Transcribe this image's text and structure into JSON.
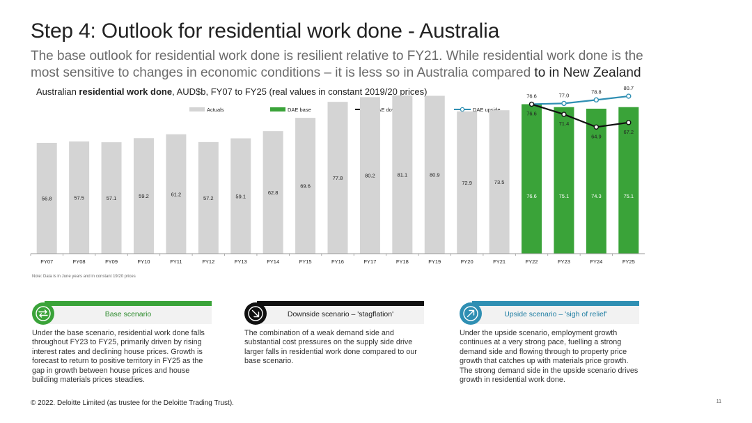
{
  "slide": {
    "title": "Step 4: Outlook for residential work done - Australia",
    "subtitle_line1": "The base outlook for residential work done is resilient relative to FY21. While residential work done is the",
    "subtitle_line2a": "most sensitive to changes in economic conditions – it is less so in Australia compared",
    "subtitle_line2b": "to in New Zealand",
    "chart_caption_a": "Australian ",
    "chart_caption_b": "residential work done",
    "chart_caption_c": ", AUD$b, FY07 to FY25 (real values in constant 2019/20 prices)",
    "note": "Note: Data is in June years and in constant 19/20 prices",
    "footer": "© 2022. Deloitte Limited (as trustee for the Deloitte Trading Trust).",
    "page_number": "11"
  },
  "cards": {
    "base": {
      "title": "Base scenario",
      "icon": "arrows-exchange-icon",
      "text": "Under the base scenario, residential work done falls throughout FY23 to FY25, primarily driven by rising interest rates and declining house prices. Growth is forecast to return to positive territory in FY25 as the gap in growth between house prices and house building materials prices steadies."
    },
    "downside": {
      "title": "Downside scenario – 'stagflation'",
      "icon": "arrow-down-right-icon",
      "text": "The combination of a weak demand side and substantial cost pressures on the supply side drive larger falls in residential work done compared to our base scenario."
    },
    "upside": {
      "title": "Upside scenario – 'sigh of relief'",
      "icon": "arrow-up-right-icon",
      "text": "Under the upside scenario, employment growth continues at a very strong pace, fuelling a strong demand side and flowing through to property price growth that catches up with materials price growth. The strong demand side in the upside scenario drives growth in residential work done."
    }
  },
  "colors": {
    "actuals": "#d4d4d4",
    "base": "#3aa339",
    "downside": "#111111",
    "upside": "#2f8fb3"
  },
  "chart_data": {
    "type": "bar",
    "categories": [
      "FY07",
      "FY08",
      "FY09",
      "FY10",
      "FY11",
      "FY12",
      "FY13",
      "FY14",
      "FY15",
      "FY16",
      "FY17",
      "FY18",
      "FY19",
      "FY20",
      "FY21",
      "FY22",
      "FY23",
      "FY24",
      "FY25"
    ],
    "ylim": [
      0,
      100
    ],
    "grid": false,
    "legend_position": "top",
    "series": [
      {
        "name": "Actuals",
        "type": "bar",
        "color": "#d4d4d4",
        "values": [
          56.8,
          57.5,
          57.1,
          59.2,
          61.2,
          57.2,
          59.1,
          62.8,
          69.6,
          77.8,
          80.2,
          81.1,
          80.9,
          72.9,
          73.5,
          null,
          null,
          null,
          null
        ]
      },
      {
        "name": "DAE base",
        "type": "bar",
        "color": "#3aa339",
        "values": [
          null,
          null,
          null,
          null,
          null,
          null,
          null,
          null,
          null,
          null,
          null,
          null,
          null,
          null,
          null,
          76.6,
          75.1,
          74.3,
          75.1
        ]
      },
      {
        "name": "DAE downside",
        "type": "line",
        "color": "#111111",
        "values": [
          null,
          null,
          null,
          null,
          null,
          null,
          null,
          null,
          null,
          null,
          null,
          null,
          null,
          null,
          null,
          76.6,
          71.4,
          64.9,
          67.2
        ]
      },
      {
        "name": "DAE upside",
        "type": "line",
        "color": "#2f8fb3",
        "values": [
          null,
          null,
          null,
          null,
          null,
          null,
          null,
          null,
          null,
          null,
          null,
          null,
          null,
          null,
          null,
          76.6,
          77.0,
          78.8,
          80.7
        ]
      }
    ]
  }
}
